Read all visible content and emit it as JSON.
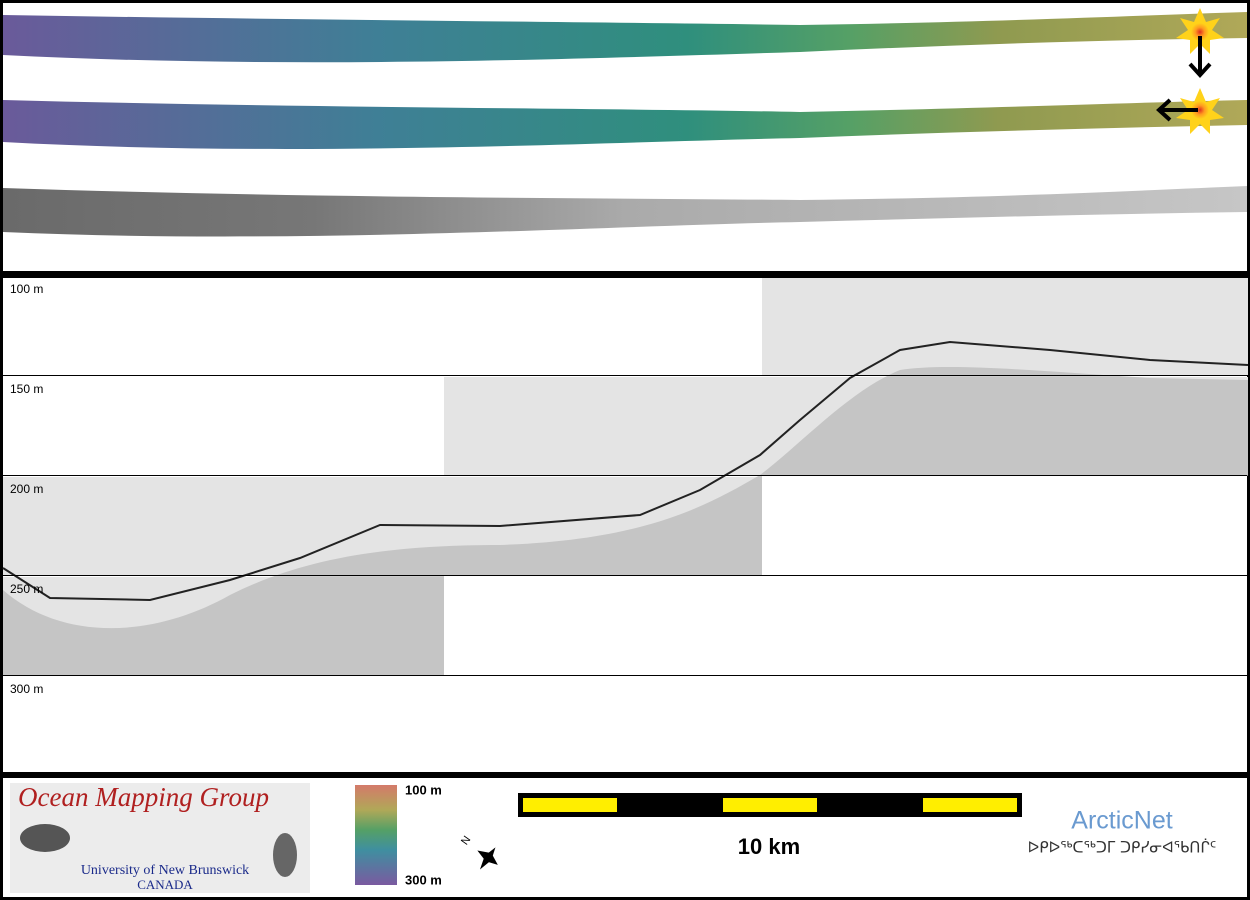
{
  "depth_labels": [
    "100 m",
    "150 m",
    "200 m",
    "250 m",
    "300 m"
  ],
  "logo": {
    "title": "Ocean Mapping Group",
    "university": "University of New Brunswick",
    "country": "CANADA"
  },
  "colorbar": {
    "top": "100 m",
    "bottom": "300 m"
  },
  "scale_bar": {
    "label": "10 km"
  },
  "partner": {
    "name": "ArcticNet",
    "syllabics": "ᐅᑭᐅᖅᑕᖅᑐᒥ ᑐᑭᓯᓂᐊᖃᑎᒌᑦ"
  }
}
